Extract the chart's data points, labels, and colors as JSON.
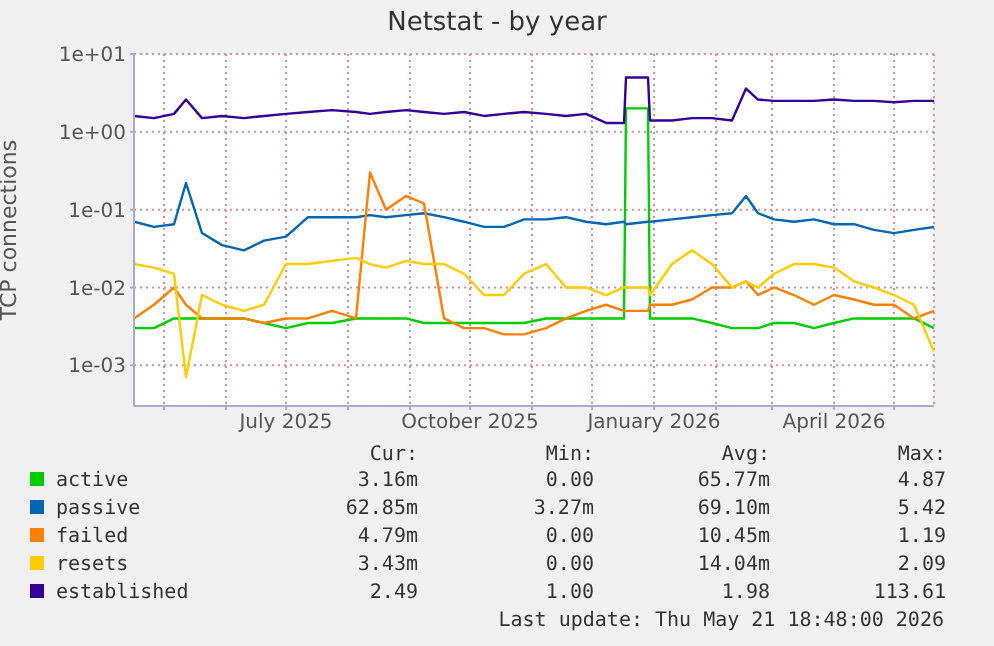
{
  "chart_data": {
    "type": "line",
    "title": "Netstat - by year",
    "ylabel": "TCP connections",
    "x": [
      "2025-04-16",
      "2025-04-26",
      "2025-05-06",
      "2025-05-12",
      "2025-05-20",
      "2025-05-30",
      "2025-06-10",
      "2025-06-20",
      "2025-07-01",
      "2025-07-12",
      "2025-07-24",
      "2025-08-05",
      "2025-08-12",
      "2025-08-20",
      "2025-08-30",
      "2025-09-08",
      "2025-09-18",
      "2025-09-28",
      "2025-10-08",
      "2025-10-18",
      "2025-10-28",
      "2025-11-08",
      "2025-11-18",
      "2025-11-28",
      "2025-12-08",
      "2025-12-17",
      "2025-12-18",
      "2025-12-29",
      "2025-12-30",
      "2026-01-10",
      "2026-01-20",
      "2026-01-30",
      "2026-02-09",
      "2026-02-16",
      "2026-02-22",
      "2026-03-02",
      "2026-03-12",
      "2026-03-22",
      "2026-04-01",
      "2026-04-11",
      "2026-04-21",
      "2026-05-01",
      "2026-05-11",
      "2026-05-21"
    ],
    "series": [
      {
        "name": "active",
        "color": "#00cc00",
        "values": [
          0.003,
          0.003,
          0.004,
          0.004,
          0.004,
          0.004,
          0.004,
          0.0035,
          0.003,
          0.0035,
          0.0035,
          0.004,
          0.004,
          0.004,
          0.004,
          0.0035,
          0.0035,
          0.0035,
          0.0035,
          0.0035,
          0.0035,
          0.004,
          0.004,
          0.004,
          0.004,
          0.004,
          2.0,
          2.0,
          0.004,
          0.004,
          0.004,
          0.0035,
          0.003,
          0.003,
          0.003,
          0.0035,
          0.0035,
          0.003,
          0.0035,
          0.004,
          0.004,
          0.004,
          0.004,
          0.003
        ]
      },
      {
        "name": "passive",
        "color": "#0066b3",
        "values": [
          0.07,
          0.06,
          0.065,
          0.22,
          0.05,
          0.035,
          0.03,
          0.04,
          0.045,
          0.08,
          0.08,
          0.08,
          0.085,
          0.08,
          0.085,
          0.09,
          0.08,
          0.07,
          0.06,
          0.06,
          0.075,
          0.075,
          0.08,
          0.07,
          0.065,
          0.07,
          0.065,
          0.07,
          0.07,
          0.075,
          0.08,
          0.085,
          0.09,
          0.15,
          0.09,
          0.075,
          0.07,
          0.075,
          0.065,
          0.065,
          0.055,
          0.05,
          0.055,
          0.06
        ]
      },
      {
        "name": "failed",
        "color": "#ff8000",
        "values": [
          0.004,
          0.006,
          0.01,
          0.006,
          0.004,
          0.004,
          0.004,
          0.0035,
          0.004,
          0.004,
          0.005,
          0.004,
          0.3,
          0.1,
          0.15,
          0.12,
          0.004,
          0.003,
          0.003,
          0.0025,
          0.0025,
          0.003,
          0.004,
          0.005,
          0.006,
          0.005,
          0.005,
          0.005,
          0.006,
          0.006,
          0.007,
          0.01,
          0.01,
          0.012,
          0.008,
          0.01,
          0.008,
          0.006,
          0.008,
          0.007,
          0.006,
          0.006,
          0.004,
          0.005
        ]
      },
      {
        "name": "resets",
        "color": "#ffcc00",
        "values": [
          0.02,
          0.018,
          0.015,
          0.0007,
          0.008,
          0.006,
          0.005,
          0.006,
          0.02,
          0.02,
          0.022,
          0.024,
          0.02,
          0.018,
          0.022,
          0.02,
          0.02,
          0.015,
          0.008,
          0.008,
          0.015,
          0.02,
          0.01,
          0.01,
          0.008,
          0.01,
          0.01,
          0.01,
          0.008,
          0.02,
          0.03,
          0.02,
          0.01,
          0.012,
          0.01,
          0.015,
          0.02,
          0.02,
          0.018,
          0.012,
          0.01,
          0.008,
          0.006,
          0.0015
        ]
      },
      {
        "name": "established",
        "color": "#330099",
        "values": [
          1.6,
          1.5,
          1.7,
          2.6,
          1.5,
          1.6,
          1.5,
          1.6,
          1.7,
          1.8,
          1.9,
          1.8,
          1.7,
          1.8,
          1.9,
          1.8,
          1.7,
          1.8,
          1.6,
          1.7,
          1.8,
          1.7,
          1.6,
          1.7,
          1.3,
          1.3,
          5.0,
          5.0,
          1.4,
          1.4,
          1.5,
          1.5,
          1.4,
          3.6,
          2.6,
          2.5,
          2.5,
          2.5,
          2.6,
          2.5,
          2.5,
          2.4,
          2.5,
          2.5
        ]
      }
    ],
    "log": "y",
    "ylim": [
      0.0003,
      10
    ],
    "yticks": [
      {
        "value": 0.001,
        "label": "1e-03"
      },
      {
        "value": 0.01,
        "label": "1e-02"
      },
      {
        "value": 0.1,
        "label": "1e-01"
      },
      {
        "value": 1,
        "label": "1e+00"
      },
      {
        "value": 10,
        "label": "1e+01"
      }
    ],
    "xlim": [
      "2025-04-16",
      "2026-05-21"
    ],
    "xticks": [
      {
        "value": "2025-05-01",
        "label": null
      },
      {
        "value": "2025-06-01",
        "label": null
      },
      {
        "value": "2025-07-01",
        "label": "July 2025"
      },
      {
        "value": "2025-08-01",
        "label": null
      },
      {
        "value": "2025-09-01",
        "label": null
      },
      {
        "value": "2025-10-01",
        "label": "October 2025"
      },
      {
        "value": "2025-11-01",
        "label": null
      },
      {
        "value": "2025-12-01",
        "label": null
      },
      {
        "value": "2026-01-01",
        "label": "January 2026"
      },
      {
        "value": "2026-02-01",
        "label": null
      },
      {
        "value": "2026-03-01",
        "label": null
      },
      {
        "value": "2026-04-01",
        "label": "April 2026"
      },
      {
        "value": "2026-05-01",
        "label": null
      }
    ],
    "grid": true,
    "legend": "bottom",
    "marker": "none",
    "line_style": "solid",
    "annotations": [
      "Cur:",
      "Min:",
      "Avg:",
      "Max:",
      "3.16m",
      "0.00",
      "65.77m",
      "4.87",
      "62.85m",
      "3.27m",
      "69.10m",
      "5.42",
      "4.79m",
      "0.00",
      "10.45m",
      "1.19",
      "3.43m",
      "0.00",
      "14.04m",
      "2.09",
      "2.49",
      "1.00",
      "1.98",
      "113.61",
      "Last update: Thu May 21 18:48:00 2026"
    ]
  }
}
